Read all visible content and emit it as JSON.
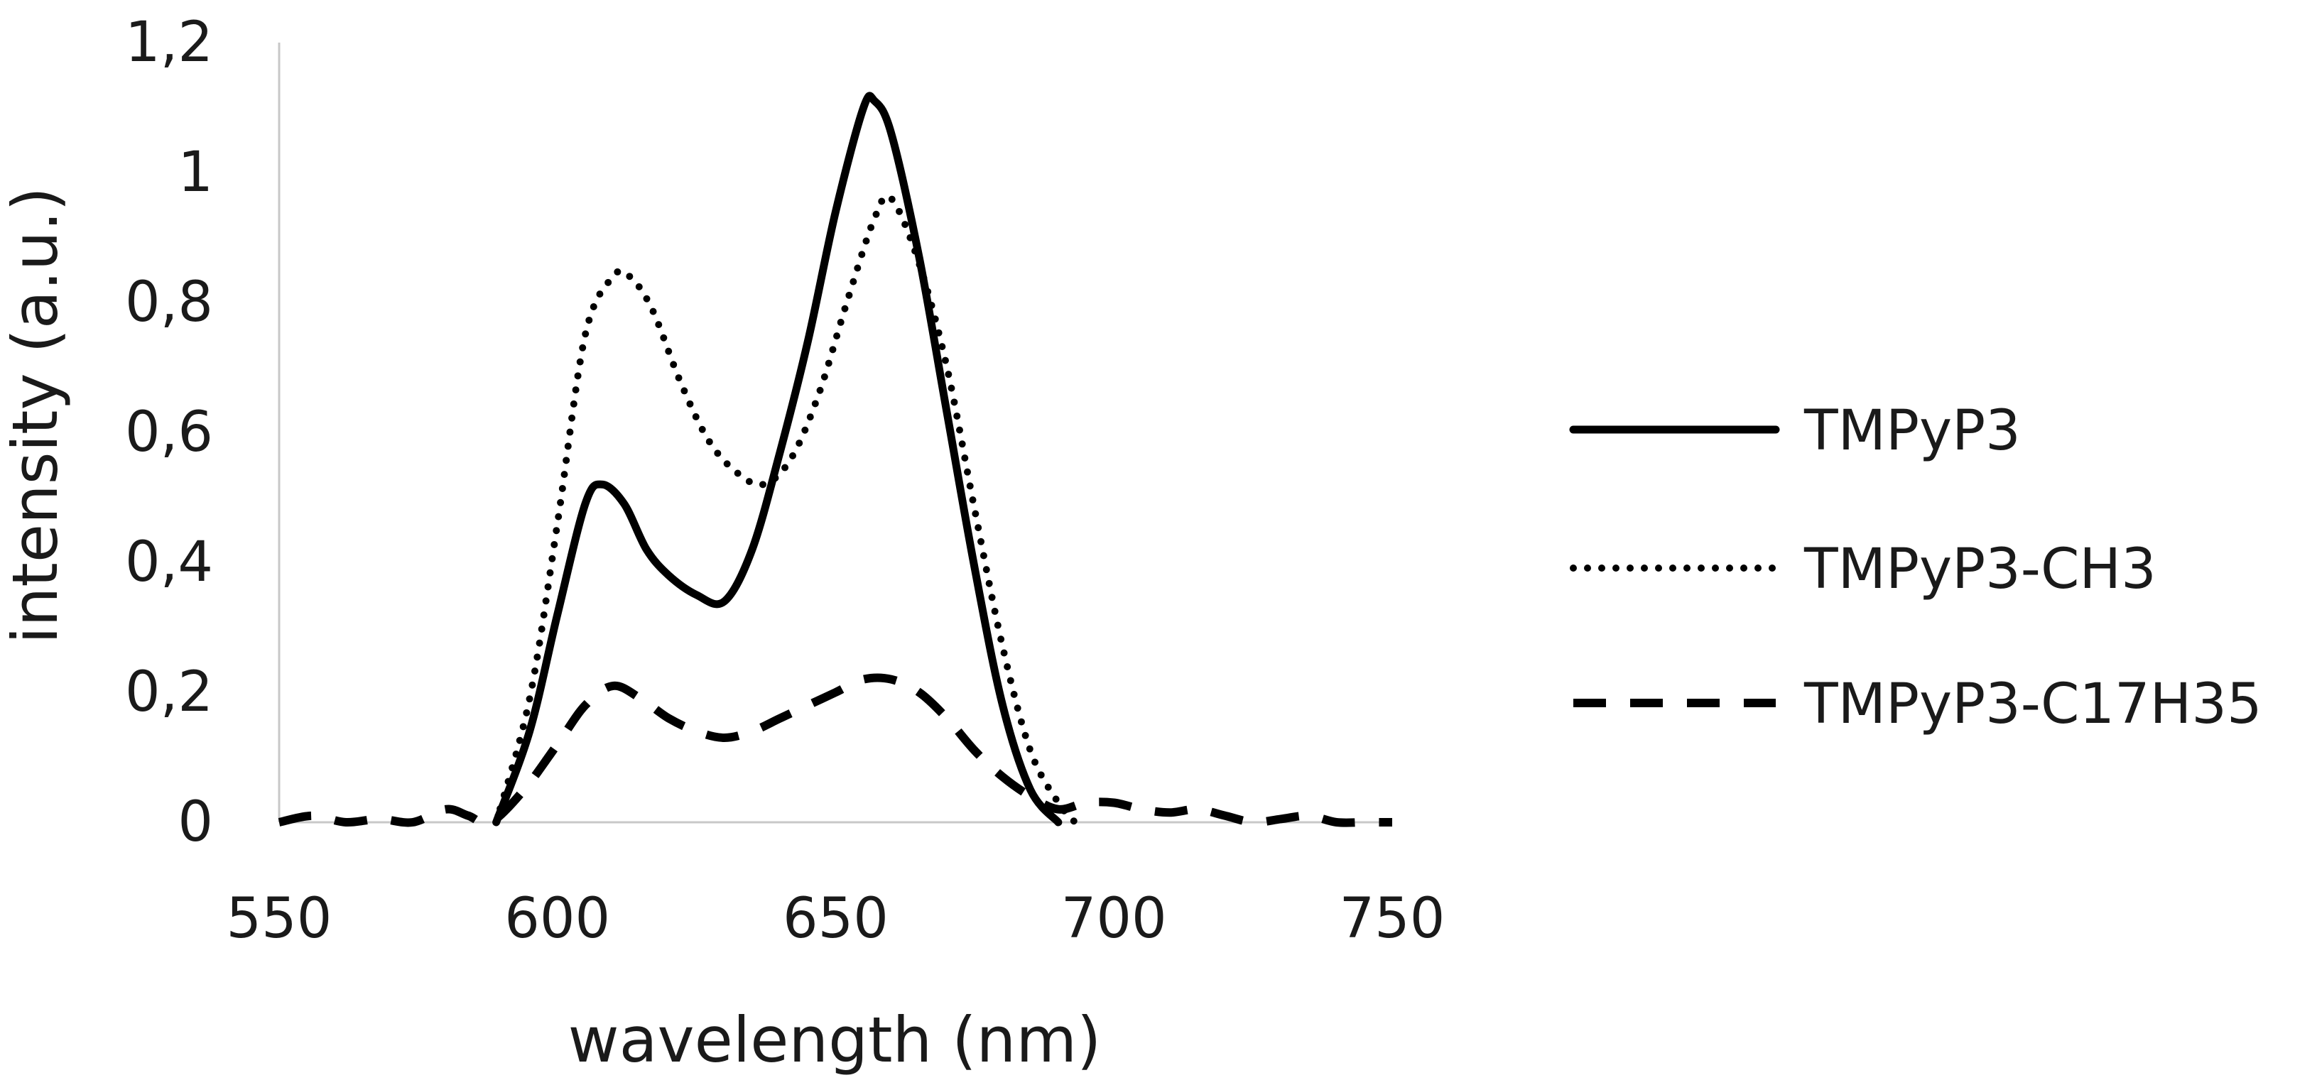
{
  "chart_data": {
    "type": "line",
    "title": "",
    "xlabel": "wavelength (nm)",
    "ylabel": "intensity (a.u.)",
    "xlim": [
      550,
      750
    ],
    "ylim": [
      0,
      1.2
    ],
    "x_ticks": [
      "550",
      "600",
      "650",
      "700",
      "750"
    ],
    "y_ticks": [
      "0",
      "0,2",
      "0,4",
      "0,6",
      "0,8",
      "1",
      "1,2"
    ],
    "grid": false,
    "legend_position": "right",
    "series": [
      {
        "name": "TMPyP3",
        "style": "solid",
        "color": "#000000",
        "x": [
          589,
          595,
          600,
          605,
          608,
          612,
          616,
          620,
          625,
          630,
          635,
          640,
          645,
          650,
          655,
          657,
          660,
          665,
          670,
          675,
          680,
          685,
          690
        ],
        "y": [
          0,
          0.14,
          0.32,
          0.49,
          0.52,
          0.49,
          0.42,
          0.38,
          0.35,
          0.34,
          0.42,
          0.57,
          0.74,
          0.94,
          1.1,
          1.11,
          1.06,
          0.87,
          0.63,
          0.39,
          0.18,
          0.05,
          0
        ]
      },
      {
        "name": "TMPyP3-CH3",
        "style": "dotted",
        "color": "#000000",
        "x": [
          589,
          595,
          600,
          605,
          610,
          613,
          617,
          622,
          627,
          632,
          637,
          642,
          647,
          652,
          657,
          660,
          665,
          670,
          675,
          680,
          685,
          690,
          693
        ],
        "y": [
          0,
          0.19,
          0.46,
          0.75,
          0.84,
          0.84,
          0.79,
          0.68,
          0.59,
          0.54,
          0.52,
          0.56,
          0.66,
          0.8,
          0.93,
          0.96,
          0.86,
          0.7,
          0.48,
          0.27,
          0.11,
          0.03,
          0
        ]
      },
      {
        "name": "TMPyP3-C17H35",
        "style": "dashed",
        "color": "#000000",
        "x": [
          550,
          556,
          562,
          568,
          574,
          580,
          584,
          588,
          594,
          600,
          605,
          610,
          615,
          620,
          625,
          630,
          635,
          640,
          645,
          650,
          655,
          660,
          665,
          670,
          675,
          680,
          685,
          690,
          695,
          700,
          705,
          710,
          715,
          720,
          725,
          730,
          735,
          740,
          745,
          750
        ],
        "y": [
          0,
          0.01,
          0,
          0.005,
          0,
          0.02,
          0.01,
          0,
          0.05,
          0.12,
          0.18,
          0.21,
          0.19,
          0.16,
          0.14,
          0.13,
          0.14,
          0.16,
          0.18,
          0.2,
          0.22,
          0.22,
          0.2,
          0.16,
          0.11,
          0.07,
          0.04,
          0.02,
          0.03,
          0.03,
          0.02,
          0.015,
          0.02,
          0.01,
          0,
          0.005,
          0.01,
          0,
          0,
          0
        ]
      }
    ]
  },
  "colors": {
    "axis": "#c8c8c8",
    "text": "#1a1a1a",
    "line": "#000000"
  }
}
